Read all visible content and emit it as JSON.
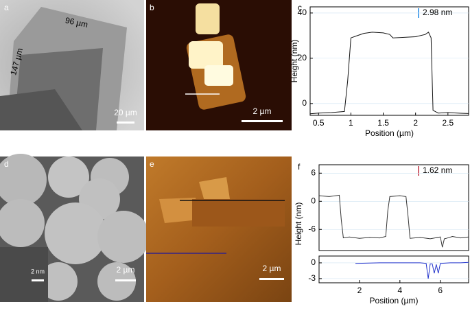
{
  "images": [
    {
      "letter": "a",
      "annotations": [
        "96 µm",
        "147 µm"
      ],
      "scale_bar": "20 µm"
    },
    {
      "letter": "b",
      "scale_bar": "2 µm"
    },
    {
      "letter": "d",
      "scale_bar": "2 µm",
      "inset_scale_bar": "2 nm"
    },
    {
      "letter": "e",
      "scale_bar": "2 µm"
    }
  ],
  "chart_data": [
    {
      "type": "line",
      "label": "c",
      "annotation": "2.98 nm",
      "x_label": "Position (µm)",
      "y_label": "Height (nm)",
      "xlim": [
        0.37,
        2.82
      ],
      "xticks": [
        0.5,
        1.0,
        1.5,
        2.0,
        2.5
      ],
      "ylim": [
        -5.2,
        42.7
      ],
      "yticks": [
        0,
        20,
        40
      ],
      "grid": true,
      "series": [
        {
          "color": "#111111",
          "x": [
            0.37,
            0.5,
            0.7,
            0.9,
            0.95,
            1.0,
            1.1,
            1.2,
            1.33,
            1.5,
            1.6,
            1.65,
            1.8,
            2.0,
            2.15,
            2.2,
            2.24,
            2.27,
            2.35,
            2.5,
            2.7,
            2.82
          ],
          "values": [
            -4.5,
            -4.2,
            -4.0,
            -3.5,
            10,
            29,
            30,
            31,
            31.5,
            31.2,
            30.5,
            29,
            29.2,
            29.5,
            30.5,
            31.5,
            29,
            -3,
            -4.2,
            -4.0,
            -4.3,
            -4.4
          ]
        }
      ]
    },
    {
      "type": "line",
      "label": "f",
      "annotation": "1.62 nm",
      "x_label": "Position (µm)",
      "y_label": "Height (nm)",
      "xlim": [
        0,
        7.4
      ],
      "xticks": [
        2,
        4,
        6
      ],
      "ylim": [
        -10.5,
        7.8
      ],
      "yticks": [
        6,
        0,
        -6
      ],
      "y2lim": [
        -3.8,
        1.3
      ],
      "y2ticks": [
        0,
        -3
      ],
      "grid": true,
      "series": [
        {
          "color": "#333333",
          "x": [
            0,
            0.5,
            1.0,
            1.1,
            1.2,
            1.5,
            2,
            2.5,
            3,
            3.3,
            3.4,
            3.5,
            4,
            4.3,
            4.4,
            4.5,
            5,
            5.5,
            6,
            6.1,
            6.2,
            6.3,
            6.6,
            7,
            7.4
          ],
          "values": [
            1.2,
            1.0,
            1.3,
            -4,
            -7.8,
            -7.6,
            -7.9,
            -7.7,
            -7.8,
            -7.5,
            -2,
            1.0,
            1.2,
            1.0,
            -3,
            -7.9,
            -7.7,
            -8,
            -7.6,
            -9.8,
            -8,
            -7.9,
            -7.5,
            -7.8,
            -7.6
          ]
        },
        {
          "color": "#2233cc",
          "axis": "y2",
          "x": [
            1.8,
            3,
            4,
            5,
            5.3,
            5.4,
            5.5,
            5.6,
            5.7,
            5.8,
            5.9,
            6,
            6.5,
            7,
            7.4
          ],
          "values": [
            -0.1,
            0,
            0,
            0,
            -0.1,
            -3,
            -0.2,
            -0.2,
            -2,
            -0.3,
            -2,
            -0.1,
            0,
            0,
            0.1
          ]
        }
      ]
    }
  ]
}
